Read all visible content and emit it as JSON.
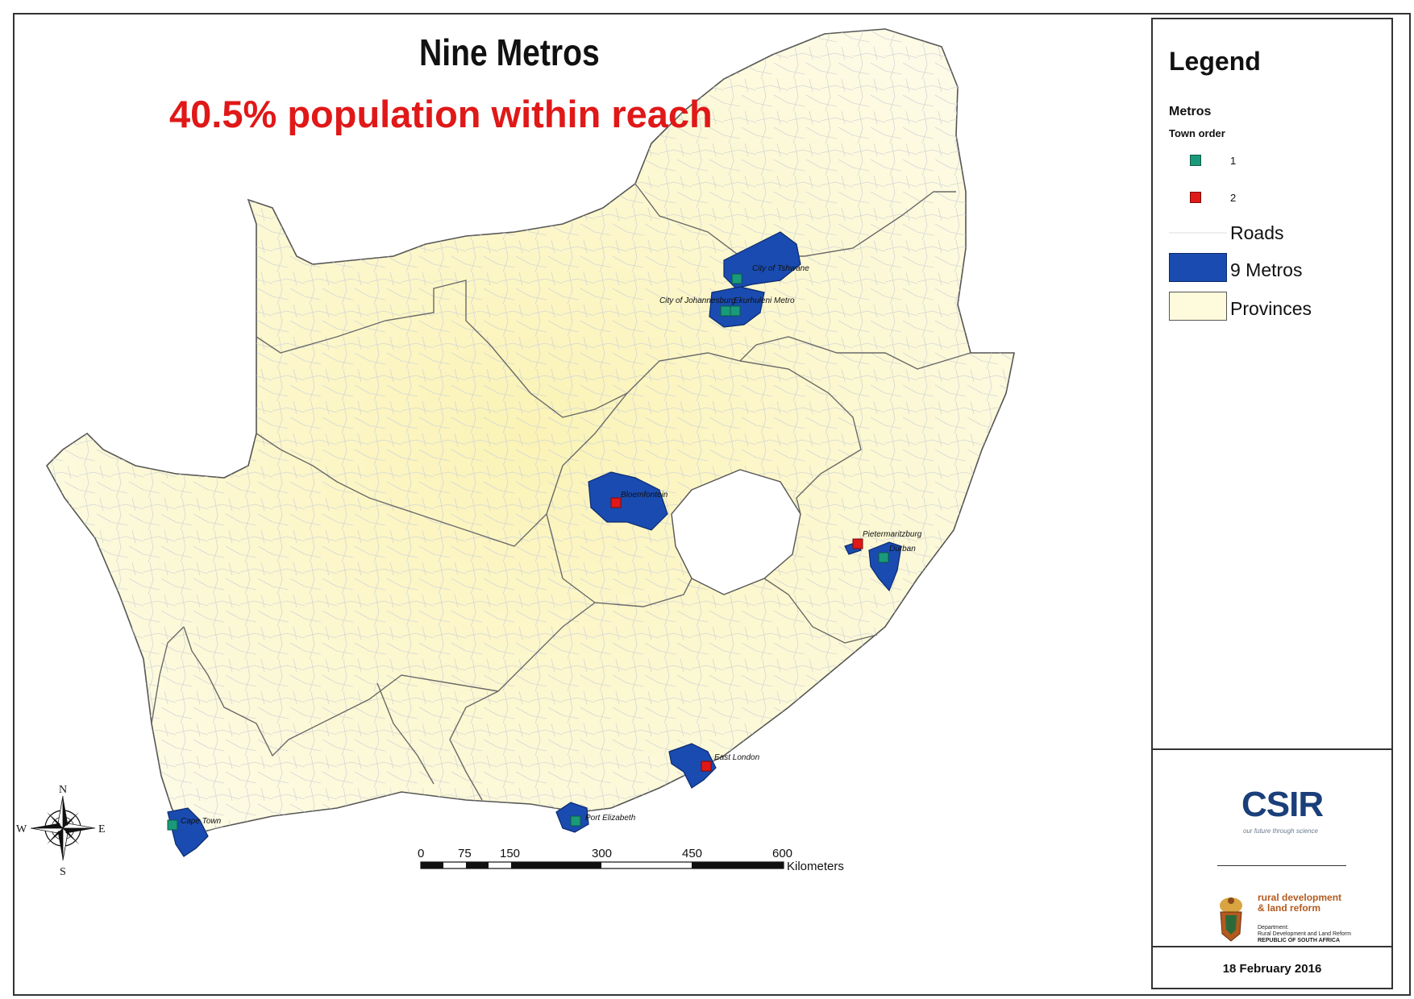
{
  "map": {
    "title": "Nine Metros",
    "subtitle": "40.5% population within reach",
    "cities": [
      {
        "name": "City of Tshwane",
        "order": 1
      },
      {
        "name": "City of Johannesburg",
        "order": 1
      },
      {
        "name": "Ekurhuleni Metro",
        "order": 1
      },
      {
        "name": "Bloemfontein",
        "order": 2
      },
      {
        "name": "Pietermaritzburg",
        "order": 2
      },
      {
        "name": "Durban",
        "order": 1
      },
      {
        "name": "East London",
        "order": 2
      },
      {
        "name": "Port Elizabeth",
        "order": 1
      },
      {
        "name": "Cape Town",
        "order": 1
      }
    ],
    "scalebar": {
      "ticks": [
        "0",
        "75",
        "150",
        "300",
        "450",
        "600"
      ],
      "unit": "Kilometers"
    },
    "compass": {
      "n": "N",
      "e": "E",
      "s": "S",
      "w": "W"
    }
  },
  "legend": {
    "title": "Legend",
    "group_title": "Metros",
    "town_order_title": "Town order",
    "town_orders": [
      {
        "label": "1",
        "color": "#1a9a7a"
      },
      {
        "label": "2",
        "color": "#e01818"
      }
    ],
    "layers": [
      {
        "label": "Roads"
      },
      {
        "label": "9 Metros",
        "color": "#1a4bb0"
      },
      {
        "label": "Provinces",
        "color": "#fdfbdc"
      }
    ],
    "logo_csir": {
      "name": "CSIR",
      "tagline": "our future through science"
    },
    "logo_dept": {
      "name_line1": "rural development",
      "name_line2": "& land reform",
      "sub1": "Department:",
      "sub2": "Rural Development and Land Reform",
      "sub3": "REPUBLIC OF SOUTH AFRICA"
    },
    "date": "18 February 2016"
  },
  "colors": {
    "province_fill": "#fdfad6",
    "metro_fill": "#1a4bb0",
    "order1": "#1a9a7a",
    "order2": "#e01818",
    "subtitle": "#e01818"
  }
}
